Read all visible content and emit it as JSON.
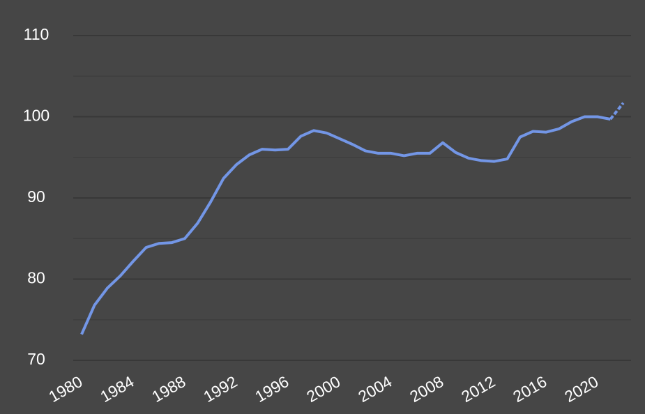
{
  "chart_data": {
    "type": "line",
    "x": [
      1980,
      1981,
      1982,
      1983,
      1984,
      1985,
      1986,
      1987,
      1988,
      1989,
      1990,
      1991,
      1992,
      1993,
      1994,
      1995,
      1996,
      1997,
      1998,
      1999,
      2000,
      2001,
      2002,
      2003,
      2004,
      2005,
      2006,
      2007,
      2008,
      2009,
      2010,
      2011,
      2012,
      2013,
      2014,
      2015,
      2016,
      2017,
      2018,
      2019,
      2020,
      2021,
      2022
    ],
    "values": [
      73.2,
      76.8,
      78.9,
      80.4,
      82.2,
      83.9,
      84.4,
      84.5,
      85.0,
      86.9,
      89.5,
      92.4,
      94.1,
      95.3,
      96.0,
      95.9,
      96.0,
      97.6,
      98.3,
      98.0,
      97.3,
      96.6,
      95.8,
      95.5,
      95.5,
      95.2,
      95.5,
      95.5,
      96.8,
      95.6,
      94.9,
      94.6,
      94.5,
      94.8,
      97.5,
      98.2,
      98.1,
      98.5,
      99.4,
      100.0,
      100.0,
      99.7,
      101.7
    ],
    "color": "#7396e6",
    "dashed_last_segment": true,
    "xlim": [
      1979.35,
      2022.6
    ],
    "xticks": [
      1980,
      1984,
      1988,
      1992,
      1996,
      2000,
      2004,
      2008,
      2012,
      2016,
      2020
    ],
    "ylim": [
      70,
      110
    ],
    "yticks": [
      70,
      80,
      90,
      100,
      110
    ],
    "minor_grid_yticks": [
      75,
      85,
      95,
      105
    ],
    "grid": true
  }
}
